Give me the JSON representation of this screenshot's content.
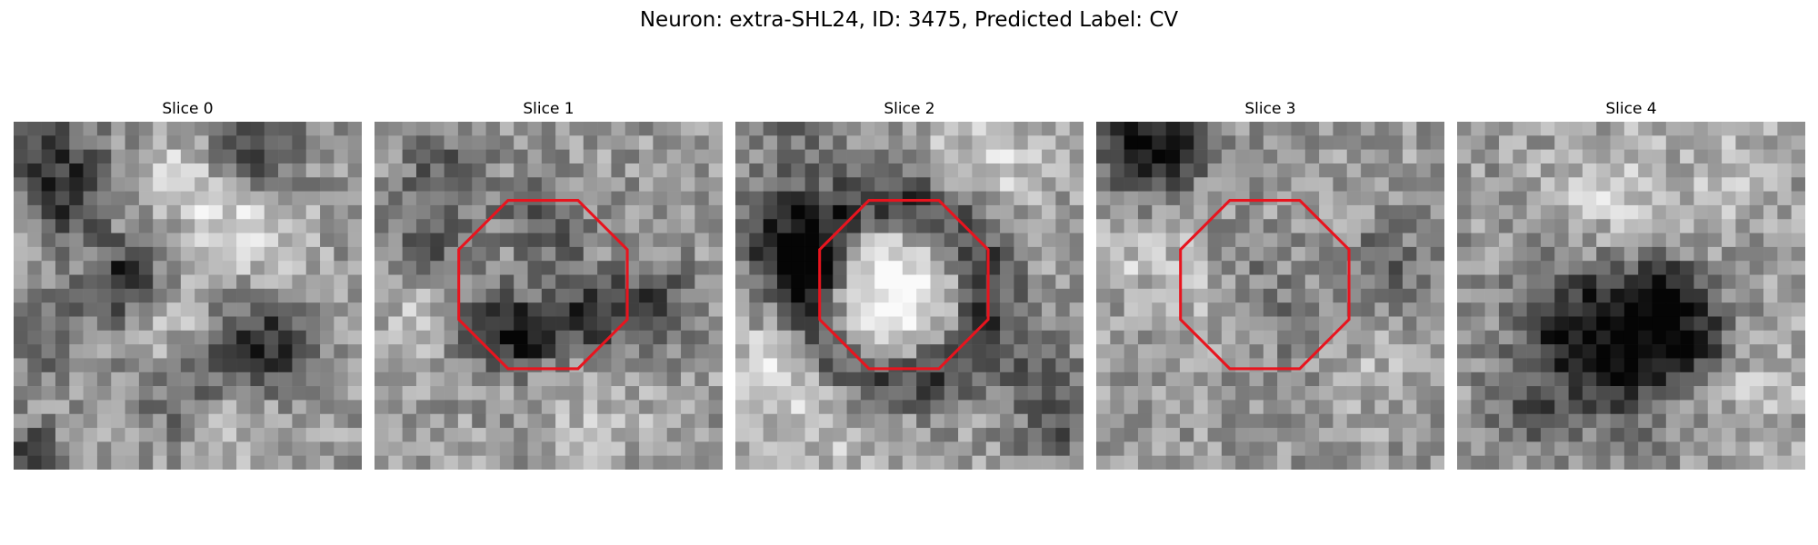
{
  "figure": {
    "title": "Neuron: extra-SHL24, ID: 3475, Predicted Label: CV"
  },
  "grid_size": 25,
  "colors": {
    "background": "#ffffff",
    "overlay": "#e8141e"
  },
  "colormap": "gray",
  "panels": [
    {
      "title": "Slice 0",
      "overlay": false,
      "seed": 11,
      "dark_spots": [
        [
          3,
          3,
          2.6,
          0.33
        ],
        [
          17,
          2,
          2.4,
          0.42
        ],
        [
          8,
          11.5,
          2.0,
          0.48
        ],
        [
          18,
          16,
          2.6,
          0.4
        ],
        [
          12,
          19,
          2.8,
          0.22
        ],
        [
          2,
          16,
          2.2,
          0.22
        ],
        [
          1,
          24,
          1.6,
          0.38
        ],
        [
          4,
          6,
          1.8,
          0.24
        ]
      ],
      "bright_spots": [
        [
          13,
          4,
          2.4,
          0.26
        ],
        [
          17,
          8,
          2.6,
          0.26
        ],
        [
          11,
          15,
          2.4,
          0.22
        ],
        [
          16,
          21,
          2.2,
          0.18
        ]
      ]
    },
    {
      "title": "Slice 1",
      "overlay": true,
      "seed": 23,
      "dark_spots": [
        [
          12,
          8,
          2.4,
          0.32
        ],
        [
          9,
          14.5,
          2.2,
          0.42
        ],
        [
          15,
          14,
          2.2,
          0.4
        ],
        [
          11,
          15.5,
          1.5,
          0.26
        ],
        [
          20,
          13,
          2.0,
          0.34
        ],
        [
          5,
          4,
          2.2,
          0.26
        ],
        [
          4,
          9,
          1.8,
          0.22
        ]
      ],
      "bright_spots": [
        [
          11,
          11,
          2.8,
          0.16
        ],
        [
          3,
          14,
          2.0,
          0.16
        ],
        [
          16,
          21,
          2.8,
          0.14
        ]
      ]
    },
    {
      "title": "Slice 2",
      "overlay": true,
      "ring": [
        11.5,
        12,
        6.5,
        0.4,
        1.7
      ],
      "seed": 37,
      "dark_spots": [
        [
          3,
          8,
          2.4,
          0.38
        ],
        [
          5,
          11,
          1.7,
          0.34
        ],
        [
          4,
          2,
          2.0,
          0.18
        ],
        [
          23,
          22,
          2.0,
          0.24
        ],
        [
          21,
          17,
          2.2,
          0.2
        ]
      ],
      "bright_spots": [
        [
          11.5,
          12.5,
          3.2,
          0.42
        ],
        [
          3,
          17.5,
          2.4,
          0.24
        ],
        [
          7,
          22,
          3.2,
          0.16
        ],
        [
          18,
          3,
          3.0,
          0.22
        ]
      ]
    },
    {
      "title": "Slice 3",
      "overlay": true,
      "seed": 53,
      "dark_spots": [
        [
          3,
          2,
          2.2,
          0.5
        ],
        [
          6,
          2,
          1.6,
          0.3
        ],
        [
          10,
          10,
          2.0,
          0.2
        ],
        [
          21,
          10,
          2.0,
          0.2
        ],
        [
          14,
          14,
          2.0,
          0.16
        ]
      ],
      "bright_spots": [
        [
          8,
          11,
          2.4,
          0.18
        ],
        [
          2,
          10,
          2.0,
          0.14
        ],
        [
          21,
          18,
          2.4,
          0.1
        ]
      ]
    },
    {
      "title": "Slice 4",
      "overlay": false,
      "seed": 71,
      "dark_spots": [
        [
          8,
          15,
          3.0,
          0.44
        ],
        [
          13,
          14,
          2.6,
          0.4
        ],
        [
          17,
          16,
          2.0,
          0.42
        ],
        [
          12,
          19,
          2.6,
          0.28
        ],
        [
          5,
          21,
          2.2,
          0.22
        ],
        [
          15,
          12,
          2.0,
          0.24
        ]
      ],
      "bright_spots": [
        [
          11,
          5,
          3.2,
          0.18
        ],
        [
          20,
          4,
          2.8,
          0.14
        ],
        [
          22,
          19,
          2.6,
          0.16
        ]
      ]
    }
  ]
}
